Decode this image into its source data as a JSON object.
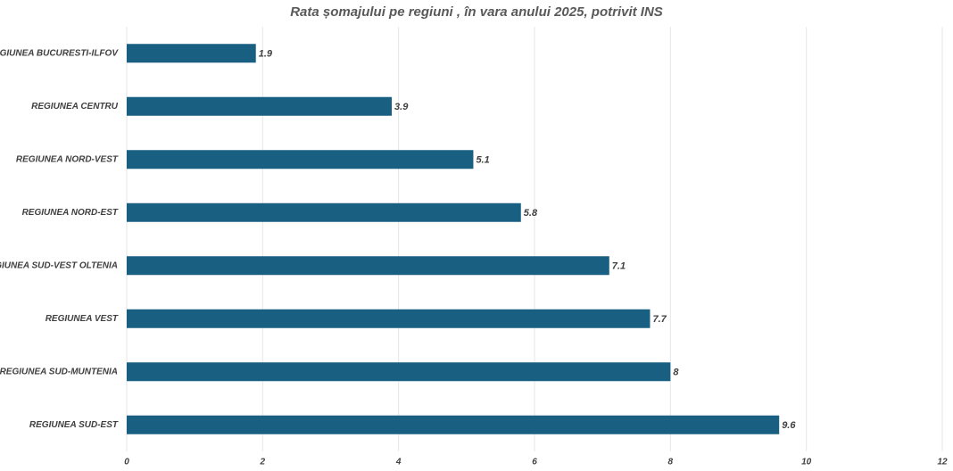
{
  "chart_data": {
    "type": "bar",
    "orientation": "horizontal",
    "title": "Rata șomajului pe regiuni , în vara anului 2025, potrivit INS",
    "categories": [
      "REGIUNEA BUCURESTI-ILFOV",
      "REGIUNEA CENTRU",
      "REGIUNEA NORD-VEST",
      "REGIUNEA NORD-EST",
      "REGIUNEA SUD-VEST OLTENIA",
      "REGIUNEA VEST",
      "REGIUNEA SUD-MUNTENIA",
      "REGIUNEA SUD-EST"
    ],
    "values": [
      1.9,
      3.9,
      5.1,
      5.8,
      7.1,
      7.7,
      8,
      9.6
    ],
    "color": "#185f82",
    "xlim": [
      0,
      12
    ],
    "xticks": [
      0,
      2,
      4,
      6,
      8,
      10,
      12
    ],
    "grid": true
  }
}
